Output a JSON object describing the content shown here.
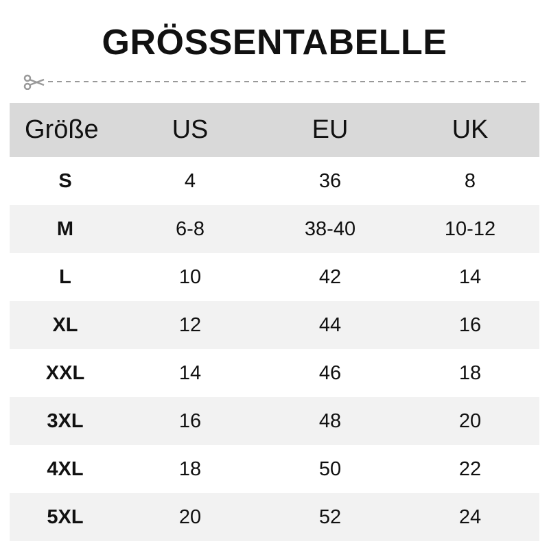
{
  "title": "GRÖSSENTABELLE",
  "headers": [
    "Größe",
    "US",
    "EU",
    "UK"
  ],
  "rows": [
    [
      "S",
      "4",
      "36",
      "8"
    ],
    [
      "M",
      "6-8",
      "38-40",
      "10-12"
    ],
    [
      "L",
      "10",
      "42",
      "14"
    ],
    [
      "XL",
      "12",
      "44",
      "16"
    ],
    [
      "XXL",
      "14",
      "46",
      "18"
    ],
    [
      "3XL",
      "16",
      "48",
      "20"
    ],
    [
      "4XL",
      "18",
      "50",
      "22"
    ],
    [
      "5XL",
      "20",
      "52",
      "24"
    ]
  ],
  "colors": {
    "header_bg": "#d9d9d9",
    "alt_row_bg": "#f2f2f2",
    "cut_line": "#999999"
  }
}
